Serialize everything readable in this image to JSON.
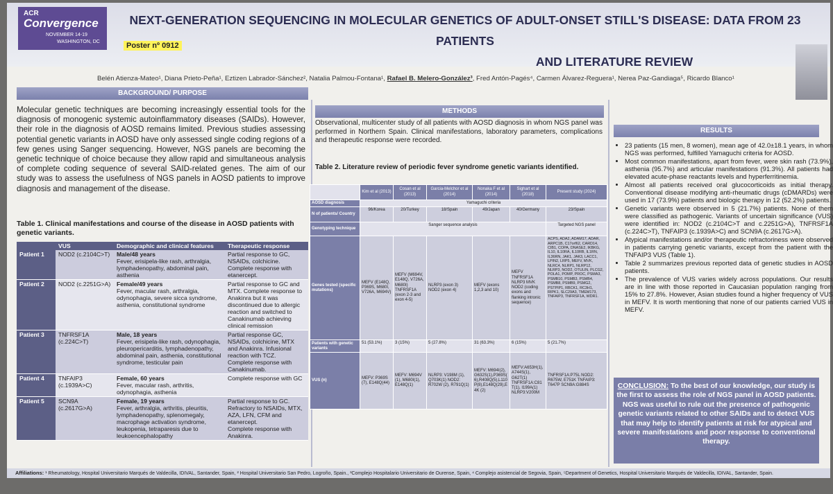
{
  "logo": {
    "line1": "ACR",
    "line2": "Convergence",
    "line3": "NOVEMBER 14-19",
    "line4": "WASHINGTON, DC"
  },
  "poster_number": "Poster nº 0912",
  "title_line1": "NEXT-GENERATION SEQUENCING IN MOLECULAR GENETICS OF ADULT-ONSET STILL'S DISEASE: DATA FROM 23 PATIENTS",
  "title_line2": "AND LITERATURE REVIEW",
  "authors": {
    "before": "Belén Atienza-Mateo¹, Diana Prieto-Peña¹, Eztizen Labrador-Sánchez², Natalia Palmou-Fontana¹,",
    "presenter": "Rafael B. Melero-González³",
    "after": ", Fred Antón-Pagés⁴, Carmen Álvarez-Reguera¹, Nerea Paz-Gandiaga⁵, Ricardo Blanco¹"
  },
  "background": {
    "heading": "BACKGROUND/ PURPOSE",
    "text": "Molecular genetic techniques are becoming increasingly essential tools for the diagnosis of monogenic systemic autoinflammatory diseases (SAIDs). However, their role in the diagnosis of AOSD remains limited. Previous studies assessing potential genetic variants in AOSD have only assessed single coding regions of a few genes using Sanger sequencing. However, NGS panels are becoming the genetic technique of choice because they allow rapid and simultaneous analysis of complete coding sequence of several SAID-related genes. The aim of our study was to assess the usefulness of NGS panels in AOSD patients to improve diagnosis and management of the disease."
  },
  "table1": {
    "title": "Table 1. Clinical manifestations and course of the disease in AOSD patients with genetic variants.",
    "headers": [
      "",
      "VUS",
      "Demographic and clinical features",
      "Therapeutic response"
    ],
    "rows": [
      {
        "patient": "Patient 1",
        "vus": "NOD2 (c.2104C>T)",
        "demo": "Male/48 years",
        "features": "Fever, erisipela-like rash, arthralgia, lymphadenopathy, abdominal pain, asthenia",
        "resp1": "Partial response to GC, NSAIDs, colchicine.",
        "resp2": "Complete response with etanercept."
      },
      {
        "patient": "Patient 2",
        "vus": "NOD2 (c.2251G>A)",
        "demo": "Female/49 years",
        "features": "Fever, macular rash, arthralgia, odynophagia, severe sicca syndrome, asthenia, constitutional syndrome",
        "resp1": "Partial response to GC and MTX. Complete response to Anakinra but it was discontinued due to allergic reaction and switched to Canakinumab achieving clinical remission",
        "resp2": ""
      },
      {
        "patient": "Patient 3",
        "vus": "TNFRSF1A (c.224C>T)",
        "demo": "Male, 18 years",
        "features": "Fever, erisipela-like rash, odynophagia, pleuropericarditis, lymphadenopathy, abdominal pain, asthenia, constitutional syndrome, testicular pain",
        "resp1": "Partial response GC, NSAIDs, colchicine, MTX and Anakinra. Infusional reaction with TCZ.",
        "resp2": "Complete response with Canakinumab."
      },
      {
        "patient": "Patient 4",
        "vus": "TNFAIP3 (c.1939A>C)",
        "demo": "Female, 60 years",
        "features": "Fever, macular rash, arthritis, odynophagia, asthenia",
        "resp1": "Complete response with GC",
        "resp2": ""
      },
      {
        "patient": "Patient 5",
        "vus": "SCN9A (c.2617G>A)",
        "demo": "Female, 19 years",
        "features": "Fever, arthralgia, arthritis, pleuritis, lymphadenopathy, splenomegaly, macrophage activation syndrome, leukopenia, tetraparesis due to leukoencephalopathy",
        "resp1": "Partial response to GC. Refractory to NSAIDs, MTX, AZA, LFN, CFM and etanercept.",
        "resp2": "Complete response with Anakinra."
      }
    ]
  },
  "methods": {
    "heading": "METHODS",
    "text": "Observational, multicenter study of all patients with AOSD diagnosis in whom NGS panel was performed in Northern Spain. Clinical manifestations, laboratory parameters, complications and therapeutic response were recorded."
  },
  "table2": {
    "title": "Table 2. Literature review of periodic fever syndrome genetic variants identified.",
    "studies": [
      "Kim et al (2013)",
      "Cosan et al (2013)",
      "Garcia-Melchor et al (2014)",
      "Nonaka F et al (2014)",
      "Sighart et al (2018)",
      "Present study (2024)"
    ],
    "row_labels": {
      "diagnosis": "AOSD diagnosis",
      "n": "N of patients/ Country",
      "technique": "Genotyping technique",
      "genes": "Genes tested (specific mutations)",
      "patients": "Patients with genetic variants",
      "vus": "VUS (n)"
    },
    "diagnosis": "Yamaguchi criteria",
    "n": [
      "96/Korea",
      "20/Turkey",
      "18/Spain",
      "49/Japan",
      "40/Germany",
      "23/Spain"
    ],
    "technique_sanger": "Sanger sequence analysis",
    "technique_ngs": "Targeted NGS panel",
    "genes": [
      "MEFV (E148Q, P369S, M680I, V726A, M694V)",
      "MEFV (M694V, E148Q, V726A, M680I) TNFRSF1A (exon 2-3 and exon 4-5)",
      "NLRP3 (exon 3) NOD2 (exon 4)",
      "MEFV (exons 1,2,3 and 10)",
      "MEFV TNFRSF1A NLRP3 MVK NOD2 (coding exons and flanking intronic sequence)",
      "ACPS, ADA2, ADAM17, ADAR, ARPC1B, C17orf62, CARD14, CIB1, COPA, DNASE2, IKBKG, IL10, IL10RA, IL10RB, IL1RN, IL36RN, JAK1, JAK3, LACC1, LPIN2, LRP5, MEFV, MVK, NLRC4, NLRP1, NLRP12, NLRP3, NOD2, OTULIN, PLCG2, POLA1, POMP, PROC, PSMA3, PSMB10, PSMB3, PSMB4, PSMB8, PSMB9, PSMG2, PSTPIP1, RBCK1, RC3H1, RIPK1, SLC29A3, TMEM173, TNFAIP3, TNFRSF1A, WDR1."
    ],
    "patients": [
      "51 (53.1%)",
      "3 (15%)",
      "5 (27.8%)",
      "31 (63.3%)",
      "6 (15%)",
      "5 (21.7%)"
    ],
    "vus": [
      "MEFV: P369S (7), E148Q(44)",
      "MEFV: M694V (1), M680I(1), E148Q(1)",
      "NLRP3: V198M (1), Q703K(1) NOD2: R702W (2), R791Q(1)",
      "MEFV: M694I(2), G632S(1),P369S(6),R408Q(5),L110P(8),E148Q(29),E4K (2)",
      "MEFV:A653H(1), A744S(1), G62T(1) TNFRSF1A:C81T(1), I199A(1) NLRP3:V200M",
      "TNFRSF1A:P75L NOD2: R675W, E751K TNFAIP3: T647P SCN9A:G884S"
    ]
  },
  "results": {
    "heading": "RESULTS",
    "items": [
      "23 patients (15 men, 8 women), mean age of 42.0±18.1 years, in whom NGS was performed, fulfilled Yamaguchi criteria for AOSD.",
      "Most common manifestations, apart from fever, were skin rash (73.9%), asthenia (95.7%) and articular manifestations (91.3%). All patients had elevated acute-phase reactants levels and hyperferritinemia.",
      "Almost all patients received oral glucocorticoids as initial therapy. Conventional disease modifying anti-rheumatic drugs (cDMARDs) were used in 17 (73.9%) patients and biologic therapy in 12 (52.2%) patients.",
      "Genetic variants were observed in 5 (21.7%) patients. None of them were classified as pathogenic. Variants of uncertain significance (VUS) were identified in: NOD2 (c.2104C>T and c.2251G>A), TNFRSF1A (c.224C>T), TNFAIP3 (c.1939A>C) and SCN9A (c.2617G>A).",
      "Atypical manifestations and/or therapeutic refractoriness were observed in patients carrying genetic variants, except from the patient with the TNFAIP3 VUS (Table 1).",
      "Table 2 summarizes previous reported data of genetic studies in AOSD patients.",
      "The prevalence of VUS varies widely across populations. Our results are in line with those reported in Caucasian population ranging from 15% to 27.8%. However, Asian studies found a higher frequency of VUS in MEFV. It is worth mentioning that none of our patients carried VUS in MEFV."
    ]
  },
  "conclusion": {
    "label": "CONCLUSION:",
    "text": "To the best of our knowledge, our study is the first to assess the role of NGS panel in AOSD patients. NGS was useful to rule out the presence of pathogenic genetic variants related to other SAIDs and to detect VUS that may help to identify patients at risk for atypical and severe manifestations and poor response to conventional therapy."
  },
  "affiliations": {
    "label": "Affiliations:",
    "text": "¹ Rheumatology, Hospital Universitario Marqués de Valdecilla, IDIVAL, Santander, Spain, ² Hospital Universitario San Pedro, Logroño, Spain., ³Complejo Hospitalario Universitario de Ourense, Spain, ⁴ Complejo asistencial de Segovia, Spain, ⁵Department of Genetics, Hospital Universitario Marqués de Valdecilla, IDIVAL, Santander, Spain."
  }
}
